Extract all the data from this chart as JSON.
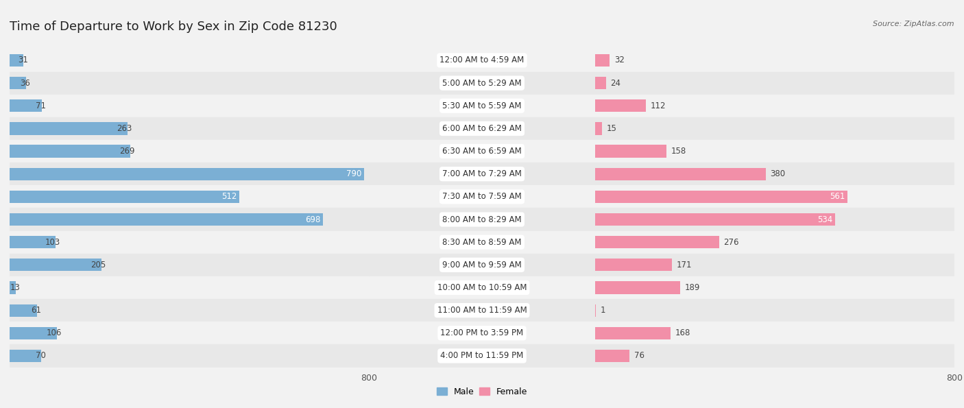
{
  "title": "Time of Departure to Work by Sex in Zip Code 81230",
  "source": "Source: ZipAtlas.com",
  "categories": [
    "12:00 AM to 4:59 AM",
    "5:00 AM to 5:29 AM",
    "5:30 AM to 5:59 AM",
    "6:00 AM to 6:29 AM",
    "6:30 AM to 6:59 AM",
    "7:00 AM to 7:29 AM",
    "7:30 AM to 7:59 AM",
    "8:00 AM to 8:29 AM",
    "8:30 AM to 8:59 AM",
    "9:00 AM to 9:59 AM",
    "10:00 AM to 10:59 AM",
    "11:00 AM to 11:59 AM",
    "12:00 PM to 3:59 PM",
    "4:00 PM to 11:59 PM"
  ],
  "male_values": [
    31,
    36,
    71,
    263,
    269,
    790,
    512,
    698,
    103,
    205,
    13,
    61,
    106,
    70
  ],
  "female_values": [
    32,
    24,
    112,
    15,
    158,
    380,
    561,
    534,
    276,
    171,
    189,
    1,
    168,
    76
  ],
  "male_color": "#7bafd4",
  "female_color": "#f28fa8",
  "male_label": "Male",
  "female_label": "Female",
  "axis_max": 800,
  "row_bg_light": "#f2f2f2",
  "row_bg_dark": "#e8e8e8",
  "title_fontsize": 13,
  "source_fontsize": 8,
  "bar_label_fontsize": 8.5,
  "cat_label_fontsize": 8.5,
  "tick_fontsize": 9
}
